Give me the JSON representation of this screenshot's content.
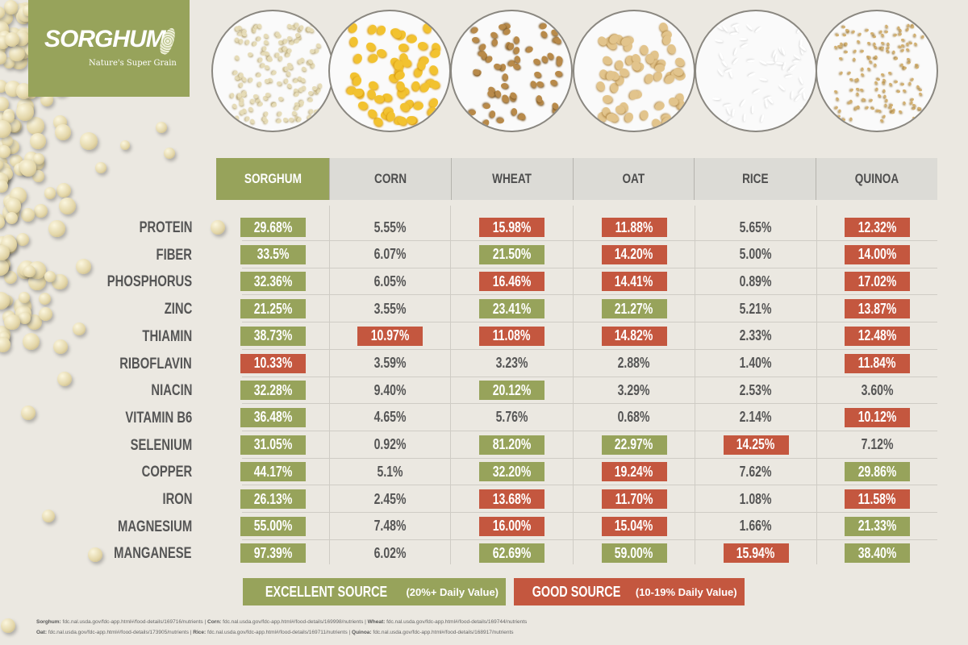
{
  "logo": {
    "title": "SORGHUM",
    "tagline": "Nature's Super Grain"
  },
  "colors": {
    "excellent": "#97a35b",
    "good": "#c4573f",
    "header": "#dcdbd6",
    "background": "#ebe8e1"
  },
  "grains": [
    "SORGHUM",
    "CORN",
    "WHEAT",
    "OAT",
    "RICE",
    "QUINOA"
  ],
  "nutrients": [
    {
      "name": "PROTEIN",
      "values": [
        "29.68%",
        "5.55%",
        "15.98%",
        "11.88%",
        "5.65%",
        "12.32%"
      ]
    },
    {
      "name": "FIBER",
      "values": [
        "33.5%",
        "6.07%",
        "21.50%",
        "14.20%",
        "5.00%",
        "14.00%"
      ]
    },
    {
      "name": "PHOSPHORUS",
      "values": [
        "32.36%",
        "6.05%",
        "16.46%",
        "14.41%",
        "0.89%",
        "17.02%"
      ]
    },
    {
      "name": "ZINC",
      "values": [
        "21.25%",
        "3.55%",
        "23.41%",
        "21.27%",
        "5.21%",
        "13.87%"
      ]
    },
    {
      "name": "THIAMIN",
      "values": [
        "38.73%",
        "10.97%",
        "11.08%",
        "14.82%",
        "2.33%",
        "12.48%"
      ]
    },
    {
      "name": "RIBOFLAVIN",
      "values": [
        "10.33%",
        "3.59%",
        "3.23%",
        "2.88%",
        "1.40%",
        "11.84%"
      ]
    },
    {
      "name": "NIACIN",
      "values": [
        "32.28%",
        "9.40%",
        "20.12%",
        "3.29%",
        "2.53%",
        "3.60%"
      ]
    },
    {
      "name": "VITAMIN B6",
      "values": [
        "36.48%",
        "4.65%",
        "5.76%",
        "0.68%",
        "2.14%",
        "10.12%"
      ]
    },
    {
      "name": "SELENIUM",
      "values": [
        "31.05%",
        "0.92%",
        "81.20%",
        "22.97%",
        "14.25%",
        "7.12%"
      ]
    },
    {
      "name": "COPPER",
      "values": [
        "44.17%",
        "5.1%",
        "32.20%",
        "19.24%",
        "7.62%",
        "29.86%"
      ]
    },
    {
      "name": "IRON",
      "values": [
        "26.13%",
        "2.45%",
        "13.68%",
        "11.70%",
        "1.08%",
        "11.58%"
      ]
    },
    {
      "name": "MAGNESIUM",
      "values": [
        "55.00%",
        "7.48%",
        "16.00%",
        "15.04%",
        "1.66%",
        "21.33%"
      ]
    },
    {
      "name": "MANGANESE",
      "values": [
        "97.39%",
        "6.02%",
        "62.69%",
        "59.00%",
        "15.94%",
        "38.40%"
      ]
    }
  ],
  "legend": {
    "excellent": {
      "label": "EXCELLENT SOURCE",
      "note": "(20%+ Daily Value)"
    },
    "good": {
      "label": "GOOD SOURCE",
      "note": "(10-19% Daily Value)"
    }
  },
  "sources": {
    "line1": [
      {
        "name": "Sorghum:",
        "url": "fdc.nal.usda.gov/fdc-app.html#/food-details/169716/nutrients"
      },
      {
        "name": "Corn:",
        "url": "fdc.nal.usda.gov/fdc-app.html#/food-details/169998/nutrients"
      },
      {
        "name": "Wheat:",
        "url": "fdc.nal.usda.gov/fdc-app.html#/food-details/169744/nutrients"
      }
    ],
    "line2": [
      {
        "name": "Oat:",
        "url": "fdc.nal.usda.gov/fdc-app.html#/food-details/173905/nutrients"
      },
      {
        "name": "Rice:",
        "url": "fdc.nal.usda.gov/fdc-app.html#/food-details/169711/nutrients"
      },
      {
        "name": "Quinoa:",
        "url": "fdc.nal.usda.gov/fdc-app.html#/food-details/168917/nutrients"
      }
    ]
  }
}
